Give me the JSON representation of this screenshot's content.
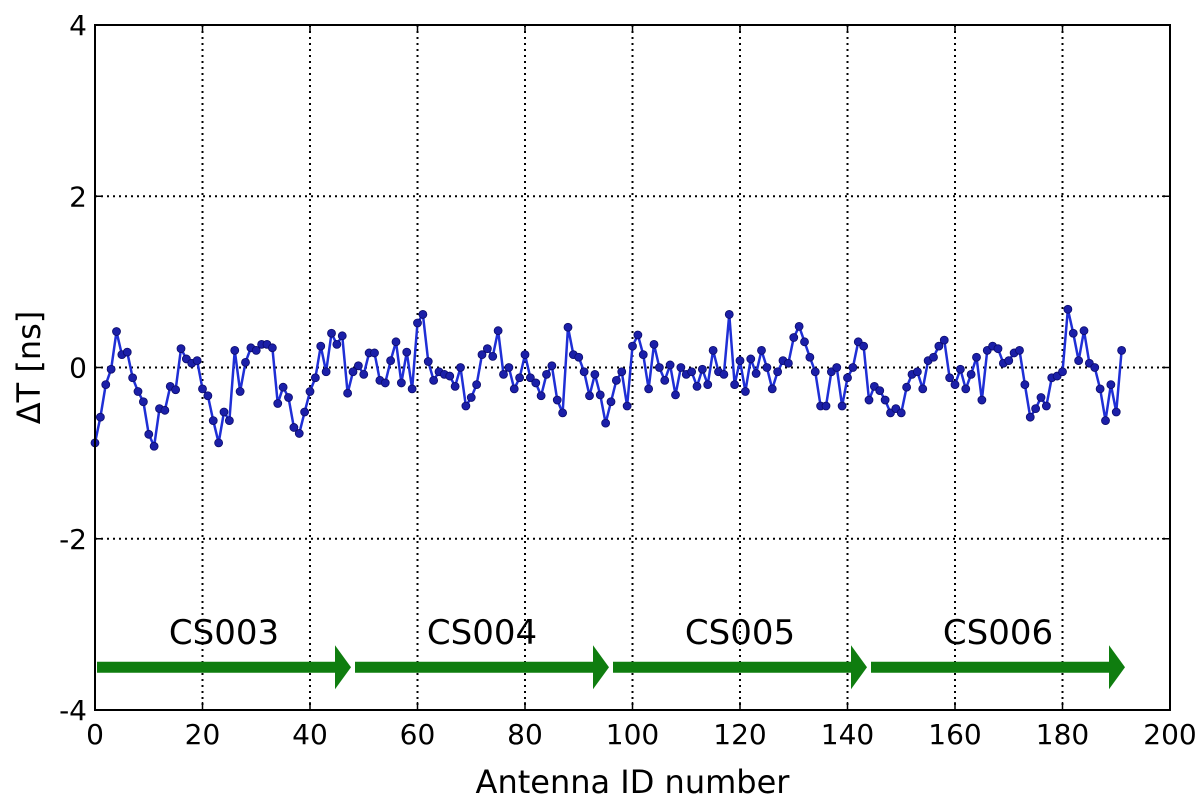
{
  "chart_data": {
    "type": "line",
    "xlabel": "Antenna ID number",
    "ylabel": "ΔT [ns]",
    "xlim": [
      0,
      200
    ],
    "ylim": [
      -4,
      4
    ],
    "xticks": [
      0,
      20,
      40,
      60,
      80,
      100,
      120,
      140,
      160,
      180,
      200
    ],
    "yticks": [
      -4,
      -2,
      0,
      2,
      4
    ],
    "grid": true,
    "colors": {
      "series": "#1f2fd6",
      "marker": "#1b1fa8",
      "arrows": "#0f7d0f"
    },
    "series": [
      {
        "x": [
          0,
          1,
          2,
          3,
          4,
          5,
          6,
          7,
          8,
          9,
          10,
          11,
          12,
          13,
          14,
          15,
          16,
          17,
          18,
          19,
          20,
          21,
          22,
          23,
          24,
          25,
          26,
          27,
          28,
          29,
          30,
          31,
          32,
          33,
          34,
          35,
          36,
          37,
          38,
          39,
          40,
          41,
          42,
          43,
          44,
          45,
          46,
          47,
          48,
          49,
          50,
          51,
          52,
          53,
          54,
          55,
          56,
          57,
          58,
          59,
          60,
          61,
          62,
          63,
          64,
          65,
          66,
          67,
          68,
          69,
          70,
          71,
          72,
          73,
          74,
          75,
          76,
          77,
          78,
          79,
          80,
          81,
          82,
          83,
          84,
          85,
          86,
          87,
          88,
          89,
          90,
          91,
          92,
          93,
          94,
          95,
          96,
          97,
          98,
          99,
          100,
          101,
          102,
          103,
          104,
          105,
          106,
          107,
          108,
          109,
          110,
          111,
          112,
          113,
          114,
          115,
          116,
          117,
          118,
          119,
          120,
          121,
          122,
          123,
          124,
          125,
          126,
          127,
          128,
          129,
          130,
          131,
          132,
          133,
          134,
          135,
          136,
          137,
          138,
          139,
          140,
          141,
          142,
          143,
          144,
          145,
          146,
          147,
          148,
          149,
          150,
          151,
          152,
          153,
          154,
          155,
          156,
          157,
          158,
          159,
          160,
          161,
          162,
          163,
          164,
          165,
          166,
          167,
          168,
          169,
          170,
          171,
          172,
          173,
          174,
          175,
          176,
          177,
          178,
          179,
          180,
          181,
          182,
          183,
          184,
          185,
          186,
          187,
          188,
          189,
          190,
          191
        ],
        "y": [
          -0.88,
          -0.58,
          -0.2,
          -0.02,
          0.42,
          0.15,
          0.18,
          -0.12,
          -0.28,
          -0.4,
          -0.78,
          -0.92,
          -0.48,
          -0.5,
          -0.22,
          -0.26,
          0.22,
          0.1,
          0.05,
          0.08,
          -0.25,
          -0.33,
          -0.62,
          -0.88,
          -0.52,
          -0.62,
          0.2,
          -0.28,
          0.06,
          0.23,
          0.2,
          0.27,
          0.27,
          0.23,
          -0.42,
          -0.23,
          -0.35,
          -0.7,
          -0.77,
          -0.52,
          -0.28,
          -0.12,
          0.25,
          -0.05,
          0.4,
          0.27,
          0.37,
          -0.3,
          -0.05,
          0.02,
          -0.08,
          0.17,
          0.17,
          -0.15,
          -0.18,
          0.08,
          0.3,
          -0.18,
          0.18,
          -0.25,
          0.52,
          0.62,
          0.07,
          -0.15,
          -0.05,
          -0.08,
          -0.1,
          -0.22,
          0.0,
          -0.45,
          -0.35,
          -0.2,
          0.15,
          0.22,
          0.13,
          0.43,
          -0.08,
          0.0,
          -0.25,
          -0.12,
          0.15,
          -0.12,
          -0.18,
          -0.33,
          -0.08,
          0.02,
          -0.38,
          -0.53,
          0.47,
          0.15,
          0.12,
          -0.05,
          -0.33,
          -0.08,
          -0.32,
          -0.65,
          -0.4,
          -0.15,
          -0.05,
          -0.45,
          0.25,
          0.38,
          0.15,
          -0.25,
          0.27,
          0.0,
          -0.15,
          0.03,
          -0.32,
          0.0,
          -0.08,
          -0.05,
          -0.22,
          -0.02,
          -0.2,
          0.2,
          -0.05,
          -0.08,
          0.62,
          -0.2,
          0.08,
          -0.28,
          0.1,
          -0.07,
          0.2,
          0.0,
          -0.25,
          -0.05,
          0.08,
          0.05,
          0.35,
          0.48,
          0.3,
          0.12,
          -0.05,
          -0.45,
          -0.45,
          -0.05,
          0.0,
          -0.45,
          -0.12,
          0.0,
          0.3,
          0.25,
          -0.38,
          -0.22,
          -0.27,
          -0.38,
          -0.53,
          -0.48,
          -0.53,
          -0.23,
          -0.08,
          -0.05,
          -0.25,
          0.08,
          0.12,
          0.25,
          0.32,
          -0.12,
          -0.2,
          -0.02,
          -0.25,
          -0.08,
          0.12,
          -0.38,
          0.2,
          0.25,
          0.22,
          0.05,
          0.08,
          0.17,
          0.2,
          -0.2,
          -0.58,
          -0.48,
          -0.35,
          -0.45,
          -0.12,
          -0.1,
          -0.05,
          0.68,
          0.4,
          0.08,
          0.43,
          0.05,
          0.0,
          -0.25,
          -0.62,
          -0.2,
          -0.52,
          0.2
        ]
      }
    ],
    "segments": [
      {
        "label": "CS003",
        "x_start": 0,
        "x_end": 48
      },
      {
        "label": "CS004",
        "x_start": 48,
        "x_end": 96
      },
      {
        "label": "CS005",
        "x_start": 96,
        "x_end": 144
      },
      {
        "label": "CS006",
        "x_start": 144,
        "x_end": 192
      }
    ],
    "segment_y": -3.5,
    "segment_label_y": -3.25
  }
}
